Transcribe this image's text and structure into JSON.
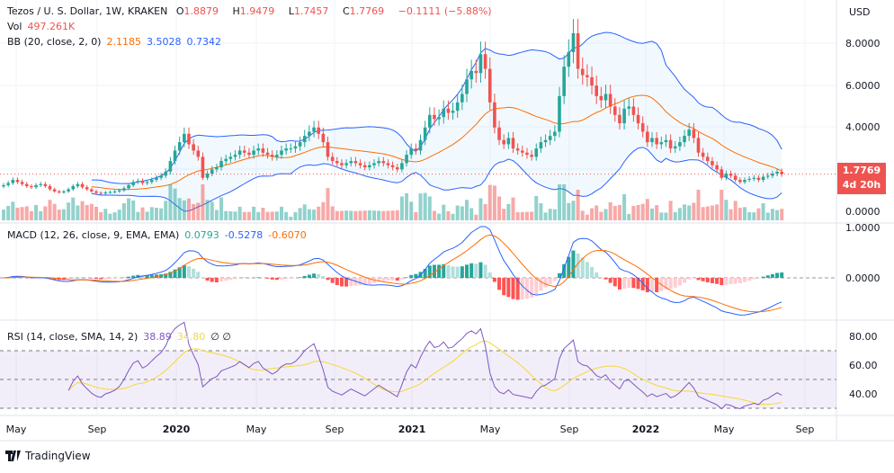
{
  "header": {
    "symbol": "Tezos / U. S. Dollar, 1W, KRAKEN",
    "o_label": "O",
    "o": "1.8879",
    "h_label": "H",
    "h": "1.9479",
    "l_label": "L",
    "l": "1.7457",
    "c_label": "C",
    "c": "1.7769",
    "change": "−0.1111 (−5.88%)"
  },
  "vol": {
    "label": "Vol",
    "value": "497.261K"
  },
  "bb": {
    "label": "BB (20, close, 2, 0)",
    "basis": "2.1185",
    "upper": "3.5028",
    "lower": "0.7342"
  },
  "macd": {
    "label": "MACD (12, 26, close, 9, EMA, EMA)",
    "hist": "0.0793",
    "macd": "-0.5278",
    "signal": "-0.6070",
    "ticks": [
      "1.0000",
      "0.0000"
    ]
  },
  "rsi": {
    "label": "RSI (14, close, SMA, 14, 2)",
    "rsi": "38.89",
    "sma": "34.80",
    "extra": "∅  ∅",
    "ticks": [
      "80.00",
      "60.00",
      "40.00"
    ]
  },
  "price_axis": {
    "currency": "USD",
    "ticks": [
      "8.0000",
      "6.0000",
      "4.0000",
      "0.0000"
    ],
    "last_price": "1.7769",
    "countdown": "4d 20h"
  },
  "time_axis": [
    "May",
    "Sep",
    "2020",
    "May",
    "Sep",
    "2021",
    "May",
    "Sep",
    "2022",
    "May",
    "Sep"
  ],
  "brand": "TradingView",
  "colors": {
    "up": "#26a69a",
    "down": "#ef5350",
    "bb_basis": "#ff6d00",
    "bb_band": "#2962ff",
    "macd": "#2962ff",
    "signal": "#ff6d00",
    "rsi": "#7e57c2",
    "rsi_sma": "#f5d835"
  },
  "chart_data": {
    "type": "candlestick",
    "interval": "1W",
    "start": "May 2019",
    "end": "Aug 2022",
    "ylim": [
      0,
      9
    ],
    "closes": [
      1.25,
      1.35,
      1.5,
      1.4,
      1.3,
      1.2,
      1.15,
      1.25,
      1.3,
      1.2,
      1.05,
      0.95,
      0.9,
      0.95,
      1.05,
      1.2,
      1.3,
      1.15,
      1.05,
      0.95,
      0.88,
      0.85,
      0.9,
      0.92,
      0.95,
      1.0,
      1.1,
      1.25,
      1.4,
      1.45,
      1.35,
      1.4,
      1.5,
      1.6,
      1.7,
      1.9,
      2.4,
      2.9,
      3.3,
      3.7,
      3.2,
      2.9,
      2.6,
      1.6,
      1.8,
      2.0,
      2.1,
      2.4,
      2.5,
      2.6,
      2.7,
      2.9,
      2.8,
      2.7,
      2.9,
      3.0,
      2.8,
      2.7,
      2.6,
      2.7,
      2.9,
      3.0,
      3.0,
      3.1,
      3.3,
      3.6,
      3.8,
      4.0,
      3.7,
      3.3,
      2.6,
      2.4,
      2.3,
      2.2,
      2.3,
      2.4,
      2.3,
      2.2,
      2.1,
      2.2,
      2.3,
      2.4,
      2.3,
      2.2,
      2.1,
      2.0,
      2.3,
      2.7,
      3.0,
      2.9,
      3.4,
      4.0,
      4.6,
      4.4,
      4.5,
      4.9,
      4.7,
      4.8,
      5.2,
      5.6,
      6.3,
      6.7,
      6.6,
      7.5,
      6.8,
      5.2,
      4.0,
      3.4,
      3.2,
      3.5,
      3.0,
      2.9,
      2.8,
      2.7,
      2.6,
      3.0,
      3.3,
      3.4,
      3.6,
      3.8,
      5.5,
      6.9,
      7.6,
      8.5,
      6.8,
      6.5,
      6.4,
      6.0,
      5.5,
      5.3,
      5.6,
      5.0,
      4.6,
      4.2,
      4.9,
      5.0,
      4.6,
      4.2,
      3.8,
      3.3,
      3.5,
      3.2,
      3.3,
      3.4,
      3.0,
      3.1,
      3.3,
      3.6,
      3.9,
      3.5,
      2.8,
      2.6,
      2.4,
      2.2,
      2.0,
      1.6,
      1.8,
      1.7,
      1.5,
      1.4,
      1.5,
      1.55,
      1.6,
      1.5,
      1.65,
      1.7,
      1.8,
      1.8879,
      1.7769
    ]
  }
}
